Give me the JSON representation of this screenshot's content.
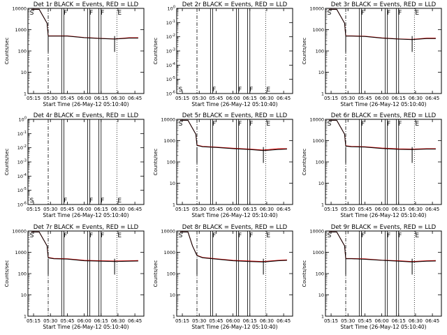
{
  "figure": {
    "xticks": [
      "05:15",
      "05:30",
      "05:45",
      "06:00",
      "06:15",
      "06:30",
      "06:45"
    ],
    "xlabel": "Start Time (26-May-12 05:10:40)",
    "ylabel": "Counts/sec",
    "colors": {
      "events": "#000000",
      "lld": "#dd0000",
      "axes": "#000000",
      "background": "#ffffff"
    }
  },
  "chart_data": [
    {
      "type": "line",
      "panel": 1,
      "title": "Det 1r BLACK = Events, RED = LLD",
      "ylog": true,
      "ylim": [
        1,
        10000
      ],
      "yticks": [
        "1",
        "10",
        "100",
        "1000",
        "10000"
      ],
      "markers": [
        "S",
        "F",
        "F",
        "F",
        "E"
      ],
      "xlabel": "Start Time (26-May-12 05:10:40)",
      "ylabel": "Counts/sec",
      "x": [
        "05:13",
        "05:20",
        "05:27",
        "05:28",
        "05:33",
        "05:45",
        "06:00",
        "06:15",
        "06:27",
        "06:40",
        "06:48"
      ],
      "series": [
        {
          "name": "Events",
          "values": [
            9000,
            9000,
            2000,
            500,
            500,
            500,
            420,
            380,
            360,
            400,
            400
          ]
        },
        {
          "name": "LLD",
          "values": [
            9000,
            9000,
            2000,
            520,
            510,
            510,
            430,
            390,
            370,
            420,
            420
          ]
        }
      ]
    },
    {
      "type": "line",
      "panel": 2,
      "title": "Det 2r BLACK = Events, RED = LLD",
      "ylog": true,
      "ylim": [
        1,
        1e-06
      ],
      "yticks": [
        "10^-6",
        "10^-5",
        "10^-4",
        "10^-3",
        "10^-2",
        "10^-1",
        "10^0"
      ],
      "markers": [
        "S",
        "F",
        "F",
        "F",
        "E"
      ],
      "xlabel": "Start Time (26-May-12 05:10:40)",
      "ylabel": "Counts/sec",
      "x": [],
      "series": []
    },
    {
      "type": "line",
      "panel": 3,
      "title": "Det 3r BLACK = Events, RED = LLD",
      "ylog": true,
      "ylim": [
        1,
        10000
      ],
      "yticks": [
        "1",
        "10",
        "100",
        "1000",
        "10000"
      ],
      "markers": [
        "S",
        "F",
        "F",
        "F",
        "E"
      ],
      "xlabel": "Start Time (26-May-12 05:10:40)",
      "ylabel": "Counts/sec",
      "x": [
        "05:13",
        "05:20",
        "05:27",
        "05:28",
        "05:33",
        "05:45",
        "06:00",
        "06:15",
        "06:27",
        "06:40",
        "06:48"
      ],
      "series": [
        {
          "name": "Events",
          "values": [
            9000,
            9000,
            2000,
            500,
            500,
            480,
            400,
            360,
            340,
            380,
            380
          ]
        },
        {
          "name": "LLD",
          "values": [
            9000,
            9000,
            2000,
            520,
            510,
            490,
            410,
            370,
            350,
            400,
            400
          ]
        }
      ]
    },
    {
      "type": "line",
      "panel": 4,
      "title": "Det 4r BLACK = Events, RED = LLD",
      "ylog": true,
      "ylim": [
        1,
        1e-06
      ],
      "yticks": [
        "10^-6",
        "10^-5",
        "10^-4",
        "10^-3",
        "10^-2",
        "10^-1",
        "10^0"
      ],
      "markers": [
        "S",
        "F",
        "F",
        "F",
        "E"
      ],
      "xlabel": "Start Time (26-May-12 05:10:40)",
      "ylabel": "Counts/sec",
      "x": [],
      "series": []
    },
    {
      "type": "line",
      "panel": 5,
      "title": "Det 5r BLACK = Events, RED = LLD",
      "ylog": true,
      "ylim": [
        1,
        10000
      ],
      "yticks": [
        "1",
        "10",
        "100",
        "1000",
        "10000"
      ],
      "markers": [
        "S",
        "F",
        "F",
        "F",
        "E"
      ],
      "xlabel": "Start Time (26-May-12 05:10:40)",
      "ylabel": "Counts/sec",
      "x": [
        "05:13",
        "05:20",
        "05:27",
        "05:28",
        "05:33",
        "05:45",
        "06:00",
        "06:15",
        "06:27",
        "06:40",
        "06:48"
      ],
      "series": [
        {
          "name": "Events",
          "values": [
            9000,
            9000,
            2000,
            600,
            520,
            480,
            420,
            380,
            340,
            380,
            400
          ]
        },
        {
          "name": "LLD",
          "values": [
            9000,
            9000,
            2000,
            620,
            540,
            500,
            440,
            400,
            360,
            420,
            420
          ]
        }
      ]
    },
    {
      "type": "line",
      "panel": 6,
      "title": "Det 6r BLACK = Events, RED = LLD",
      "ylog": true,
      "ylim": [
        1,
        10000
      ],
      "yticks": [
        "1",
        "10",
        "100",
        "1000",
        "10000"
      ],
      "markers": [
        "S",
        "F",
        "F",
        "F",
        "E"
      ],
      "xlabel": "Start Time (26-May-12 05:10:40)",
      "ylabel": "Counts/sec",
      "x": [
        "05:13",
        "05:20",
        "05:27",
        "05:28",
        "05:33",
        "05:45",
        "06:00",
        "06:15",
        "06:27",
        "06:40",
        "06:48"
      ],
      "series": [
        {
          "name": "Events",
          "values": [
            9000,
            9000,
            2000,
            550,
            520,
            500,
            430,
            390,
            380,
            400,
            400
          ]
        },
        {
          "name": "LLD",
          "values": [
            9000,
            9000,
            2000,
            570,
            540,
            520,
            450,
            410,
            400,
            420,
            420
          ]
        }
      ]
    },
    {
      "type": "line",
      "panel": 7,
      "title": "Det 7r BLACK = Events, RED = LLD",
      "ylog": true,
      "ylim": [
        1,
        10000
      ],
      "yticks": [
        "1",
        "10",
        "100",
        "1000",
        "10000"
      ],
      "markers": [
        "S",
        "F",
        "F",
        "F",
        "E"
      ],
      "xlabel": "Start Time (26-May-12 05:10:40)",
      "ylabel": "Counts/sec",
      "x": [
        "05:13",
        "05:20",
        "05:27",
        "05:28",
        "05:33",
        "05:45",
        "06:00",
        "06:15",
        "06:27",
        "06:40",
        "06:48"
      ],
      "series": [
        {
          "name": "Events",
          "values": [
            9000,
            9000,
            2000,
            550,
            500,
            480,
            400,
            380,
            370,
            380,
            390
          ]
        },
        {
          "name": "LLD",
          "values": [
            9000,
            9000,
            2000,
            570,
            520,
            500,
            420,
            400,
            390,
            400,
            410
          ]
        }
      ]
    },
    {
      "type": "line",
      "panel": 8,
      "title": "Det 8r BLACK = Events, RED = LLD",
      "ylog": true,
      "ylim": [
        1,
        10000
      ],
      "yticks": [
        "1",
        "10",
        "100",
        "1000",
        "10000"
      ],
      "markers": [
        "S",
        "F",
        "F",
        "F",
        "E"
      ],
      "xlabel": "Start Time (26-May-12 05:10:40)",
      "ylabel": "Counts/sec",
      "x": [
        "05:13",
        "05:20",
        "05:24",
        "05:28",
        "05:33",
        "05:45",
        "06:00",
        "06:15",
        "06:27",
        "06:40",
        "06:48"
      ],
      "series": [
        {
          "name": "Events",
          "values": [
            9000,
            9000,
            2000,
            700,
            550,
            480,
            400,
            370,
            350,
            400,
            420
          ]
        },
        {
          "name": "LLD",
          "values": [
            9000,
            9000,
            2000,
            720,
            570,
            500,
            420,
            390,
            370,
            420,
            440
          ]
        }
      ]
    },
    {
      "type": "line",
      "panel": 9,
      "title": "Det 9r BLACK = Events, RED = LLD",
      "ylog": true,
      "ylim": [
        1,
        10000
      ],
      "yticks": [
        "1",
        "10",
        "100",
        "1000",
        "10000"
      ],
      "markers": [
        "S",
        "F",
        "F",
        "F",
        "E"
      ],
      "xlabel": "Start Time (26-May-12 05:10:40)",
      "ylabel": "Counts/sec",
      "x": [
        "05:13",
        "05:20",
        "05:27",
        "05:28",
        "05:33",
        "05:45",
        "06:00",
        "06:15",
        "06:27",
        "06:40",
        "06:48"
      ],
      "series": [
        {
          "name": "Events",
          "values": [
            9000,
            9000,
            2000,
            500,
            500,
            470,
            420,
            380,
            350,
            380,
            390
          ]
        },
        {
          "name": "LLD",
          "values": [
            9000,
            9000,
            2000,
            520,
            510,
            490,
            430,
            400,
            370,
            400,
            410
          ]
        }
      ]
    }
  ]
}
